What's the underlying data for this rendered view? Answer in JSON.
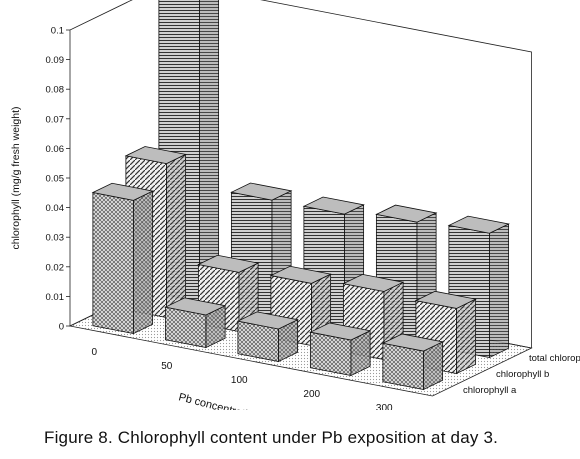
{
  "caption": "Figure 8. Chlorophyll content under Pb exposition at day 3.",
  "chart_data": {
    "type": "bar",
    "subtype": "3d-grouped-bar",
    "title": "",
    "xlabel": "Pb concentration (mg/L)",
    "ylabel": "chlorophyll (mg/g fresh weight)",
    "ylim": [
      0,
      0.1
    ],
    "yticks": [
      "0",
      "0.01",
      "0.02",
      "0.03",
      "0.04",
      "0.05",
      "0.06",
      "0.07",
      "0.08",
      "0.09",
      "0.1"
    ],
    "categories": [
      "0",
      "50",
      "100",
      "200",
      "300"
    ],
    "series": [
      {
        "name": "chlorophyll a",
        "values": [
          0.045,
          0.011,
          0.011,
          0.012,
          0.013
        ],
        "pattern": "crosshatch"
      },
      {
        "name": "chlorophyll b",
        "values": [
          0.052,
          0.02,
          0.021,
          0.023,
          0.022
        ],
        "pattern": "diagonal"
      },
      {
        "name": "total chlorophyll",
        "values": [
          0.103,
          0.039,
          0.039,
          0.041,
          0.042
        ],
        "pattern": "horizontal"
      }
    ],
    "grid": false,
    "legend": "depth-axis-labels-right"
  }
}
